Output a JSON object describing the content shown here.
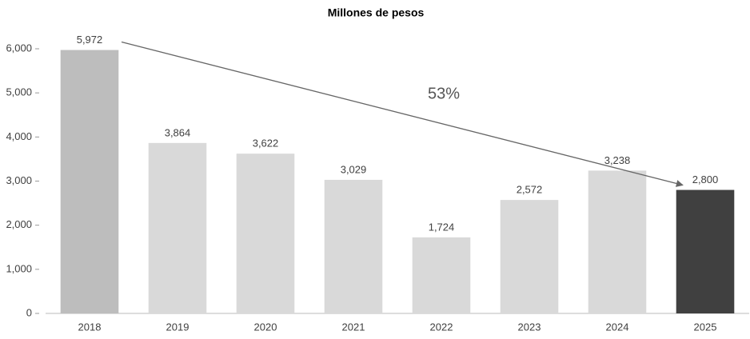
{
  "chart_data": {
    "type": "bar",
    "title": "Millones de pesos",
    "categories": [
      "2018",
      "2019",
      "2020",
      "2021",
      "2022",
      "2023",
      "2024",
      "2025"
    ],
    "values": [
      5972,
      3864,
      3622,
      3029,
      1724,
      2572,
      3238,
      2800
    ],
    "value_labels": [
      "5,972",
      "3,864",
      "3,622",
      "3,029",
      "1,724",
      "2,572",
      "3,238",
      "2,800"
    ],
    "colors": [
      "#bdbdbd",
      "#d9d9d9",
      "#d9d9d9",
      "#d9d9d9",
      "#d9d9d9",
      "#d9d9d9",
      "#d9d9d9",
      "#404040"
    ],
    "ylim": [
      0,
      6000
    ],
    "yticks": [
      0,
      {
        "value": 1000,
        "label": "1,000"
      },
      {
        "value": 2000,
        "label": "2,000"
      },
      {
        "value": 3000,
        "label": "3,000"
      },
      {
        "value": 4000,
        "label": "4,000"
      },
      {
        "value": 5000,
        "label": "5,000"
      },
      {
        "value": 6000,
        "label": "6,000"
      }
    ],
    "annotation": "53%",
    "grid": false
  }
}
